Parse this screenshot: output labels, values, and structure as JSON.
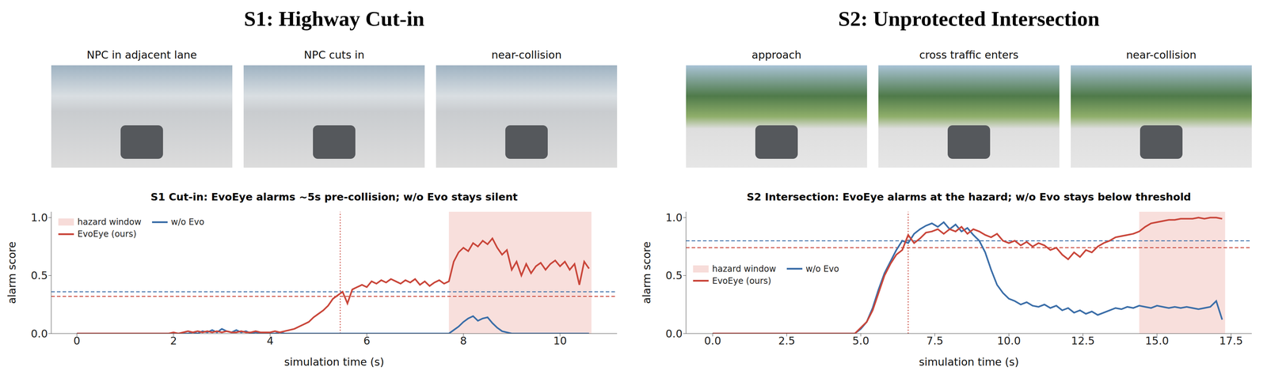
{
  "chart_data": [
    {
      "type": "line",
      "panel_title": "S1: Highway Cut-in",
      "frame_captions": [
        "NPC in adjacent lane",
        "NPC cuts in",
        "near-collision"
      ],
      "title": "S1 Cut-in: EvoEye alarms ~5s pre-collision; w/o Evo stays silent",
      "x_label": "simulation time (s)",
      "y_label": "alarm score",
      "x": [
        0,
        0.1,
        0.2,
        0.3,
        0.4,
        0.5,
        0.6,
        0.7,
        0.8,
        0.9,
        1,
        1.1,
        1.2,
        1.3,
        1.4,
        1.5,
        1.6,
        1.7,
        1.8,
        1.9,
        2,
        2.1,
        2.2,
        2.3,
        2.4,
        2.5,
        2.6,
        2.7,
        2.8,
        2.9,
        3,
        3.1,
        3.2,
        3.3,
        3.4,
        3.5,
        3.6,
        3.7,
        3.8,
        3.9,
        4,
        4.1,
        4.2,
        4.3,
        4.4,
        4.5,
        4.6,
        4.7,
        4.8,
        4.9,
        5,
        5.1,
        5.2,
        5.3,
        5.4,
        5.5,
        5.6,
        5.7,
        5.8,
        5.9,
        6,
        6.1,
        6.2,
        6.3,
        6.4,
        6.5,
        6.6,
        6.7,
        6.8,
        6.9,
        7,
        7.1,
        7.2,
        7.3,
        7.4,
        7.5,
        7.6,
        7.7,
        7.8,
        7.9,
        8,
        8.1,
        8.2,
        8.3,
        8.4,
        8.5,
        8.6,
        8.7,
        8.8,
        8.9,
        9,
        9.1,
        9.2,
        9.3,
        9.4,
        9.5,
        9.6,
        9.7,
        9.8,
        9.9,
        10,
        10.1,
        10.2,
        10.3,
        10.4,
        10.5,
        10.6
      ],
      "series": [
        {
          "name": "EvoEye (ours)",
          "color": "#c9463a",
          "threshold": 0.32,
          "values": [
            0,
            0,
            0,
            0,
            0,
            0,
            0,
            0,
            0,
            0,
            0,
            0,
            0,
            0,
            0,
            0,
            0,
            0,
            0,
            0,
            0.01,
            0,
            0.01,
            0.02,
            0.01,
            0.02,
            0.01,
            0.02,
            0.01,
            0.02,
            0.01,
            0.02,
            0.01,
            0.01,
            0.02,
            0.01,
            0.01,
            0.02,
            0.01,
            0.01,
            0.01,
            0.02,
            0.01,
            0.02,
            0.03,
            0.04,
            0.06,
            0.08,
            0.1,
            0.14,
            0.17,
            0.2,
            0.24,
            0.3,
            0.33,
            0.36,
            0.26,
            0.38,
            0.4,
            0.42,
            0.4,
            0.45,
            0.43,
            0.46,
            0.44,
            0.47,
            0.45,
            0.43,
            0.46,
            0.44,
            0.47,
            0.42,
            0.45,
            0.41,
            0.44,
            0.46,
            0.43,
            0.45,
            0.62,
            0.7,
            0.74,
            0.71,
            0.78,
            0.75,
            0.8,
            0.77,
            0.82,
            0.74,
            0.68,
            0.72,
            0.55,
            0.62,
            0.5,
            0.6,
            0.52,
            0.58,
            0.61,
            0.55,
            0.6,
            0.63,
            0.58,
            0.62,
            0.55,
            0.6,
            0.42,
            0.62,
            0.56
          ]
        },
        {
          "name": "w/o Evo",
          "color": "#3b6ea8",
          "threshold": 0.36,
          "values": [
            0,
            0,
            0,
            0,
            0,
            0,
            0,
            0,
            0,
            0,
            0,
            0,
            0,
            0,
            0,
            0,
            0,
            0,
            0,
            0,
            0,
            0,
            0,
            0,
            0.01,
            0,
            0.02,
            0.01,
            0.03,
            0.01,
            0.04,
            0.02,
            0.01,
            0.03,
            0.01,
            0.02,
            0,
            0.01,
            0,
            0,
            0,
            0,
            0.01,
            0,
            0,
            0,
            0,
            0,
            0,
            0,
            0,
            0,
            0,
            0,
            0,
            0,
            0,
            0,
            0,
            0,
            0,
            0,
            0,
            0,
            0,
            0,
            0,
            0,
            0,
            0,
            0,
            0,
            0,
            0,
            0,
            0,
            0,
            0,
            0.03,
            0.06,
            0.1,
            0.13,
            0.15,
            0.11,
            0.13,
            0.14,
            0.09,
            0.05,
            0.02,
            0.01,
            0,
            0,
            0,
            0,
            0,
            0,
            0,
            0,
            0,
            0,
            0,
            0,
            0,
            0,
            0,
            0,
            0
          ]
        }
      ],
      "hazard_window": {
        "label": "hazard window",
        "range": [
          7.7,
          10.65
        ],
        "color": "#f2c4bf"
      },
      "alarm_time": 5.45,
      "xlim": [
        -0.53,
        11.18
      ],
      "xticks": [
        0,
        2,
        4,
        6,
        8,
        10
      ],
      "ylim": [
        0,
        1.05
      ],
      "yticks": [
        {
          "value": 0,
          "label": "0.0"
        },
        {
          "value": 0.5,
          "label": "0.5"
        },
        {
          "value": 1,
          "label": "1.0"
        }
      ],
      "legend": "upper left",
      "grid": false
    },
    {
      "type": "line",
      "panel_title": "S2: Unprotected Intersection",
      "frame_captions": [
        "approach",
        "cross traffic enters",
        "near-collision"
      ],
      "title": "S2 Intersection: EvoEye alarms at the hazard; w/o Evo stays below threshold",
      "x_label": "simulation time (s)",
      "y_label": "alarm score",
      "x": [
        0,
        0.2,
        0.4,
        0.6,
        0.8,
        1,
        1.2,
        1.4,
        1.6,
        1.8,
        2,
        2.2,
        2.4,
        2.6,
        2.8,
        3,
        3.2,
        3.4,
        3.6,
        3.8,
        4,
        4.2,
        4.4,
        4.6,
        4.8,
        5,
        5.2,
        5.4,
        5.6,
        5.8,
        6,
        6.2,
        6.4,
        6.6,
        6.8,
        7,
        7.2,
        7.4,
        7.6,
        7.8,
        8,
        8.2,
        8.4,
        8.6,
        8.8,
        9,
        9.2,
        9.4,
        9.6,
        9.8,
        10,
        10.2,
        10.4,
        10.6,
        10.8,
        11,
        11.2,
        11.4,
        11.6,
        11.8,
        12,
        12.2,
        12.4,
        12.6,
        12.8,
        13,
        13.2,
        13.4,
        13.6,
        13.8,
        14,
        14.2,
        14.4,
        14.6,
        14.8,
        15,
        15.2,
        15.4,
        15.6,
        15.8,
        16,
        16.2,
        16.4,
        16.6,
        16.8,
        17,
        17.2
      ],
      "series": [
        {
          "name": "EvoEye (ours)",
          "color": "#c9463a",
          "threshold": 0.74,
          "values": [
            0,
            0,
            0,
            0,
            0,
            0,
            0,
            0,
            0,
            0,
            0,
            0,
            0,
            0,
            0,
            0,
            0,
            0,
            0,
            0,
            0,
            0,
            0,
            0,
            0,
            0.05,
            0.1,
            0.2,
            0.35,
            0.5,
            0.6,
            0.68,
            0.72,
            0.85,
            0.78,
            0.82,
            0.87,
            0.88,
            0.9,
            0.86,
            0.9,
            0.88,
            0.92,
            0.86,
            0.9,
            0.88,
            0.85,
            0.83,
            0.86,
            0.8,
            0.78,
            0.8,
            0.76,
            0.79,
            0.75,
            0.78,
            0.76,
            0.72,
            0.74,
            0.68,
            0.64,
            0.7,
            0.66,
            0.72,
            0.7,
            0.75,
            0.78,
            0.8,
            0.83,
            0.84,
            0.85,
            0.86,
            0.88,
            0.92,
            0.95,
            0.96,
            0.97,
            0.98,
            0.98,
            0.99,
            0.99,
            0.99,
            1,
            0.99,
            1,
            1,
            0.99
          ]
        },
        {
          "name": "w/o Evo",
          "color": "#3b6ea8",
          "threshold": 0.8,
          "values": [
            0,
            0,
            0,
            0,
            0,
            0,
            0,
            0,
            0,
            0,
            0,
            0,
            0,
            0,
            0,
            0,
            0,
            0,
            0,
            0,
            0,
            0,
            0,
            0,
            0,
            0.04,
            0.1,
            0.22,
            0.38,
            0.52,
            0.62,
            0.72,
            0.8,
            0.78,
            0.86,
            0.9,
            0.93,
            0.95,
            0.92,
            0.96,
            0.9,
            0.94,
            0.88,
            0.91,
            0.85,
            0.8,
            0.7,
            0.55,
            0.42,
            0.35,
            0.3,
            0.28,
            0.25,
            0.27,
            0.24,
            0.23,
            0.25,
            0.22,
            0.24,
            0.2,
            0.22,
            0.18,
            0.2,
            0.17,
            0.19,
            0.16,
            0.18,
            0.2,
            0.22,
            0.21,
            0.23,
            0.22,
            0.24,
            0.23,
            0.22,
            0.24,
            0.23,
            0.22,
            0.23,
            0.22,
            0.23,
            0.22,
            0.21,
            0.22,
            0.23,
            0.28,
            0.12
          ]
        }
      ],
      "hazard_window": {
        "label": "hazard window",
        "range": [
          14.4,
          17.3
        ],
        "color": "#f2c4bf"
      },
      "alarm_time": 6.6,
      "xlim": [
        -0.9,
        18.2
      ],
      "xticks": [
        {
          "value": 0,
          "label": "0.0"
        },
        2.5,
        {
          "value": 5,
          "label": "5.0"
        },
        7.5,
        {
          "value": 10,
          "label": "10.0"
        },
        12.5,
        {
          "value": 15,
          "label": "15.0"
        },
        17.5
      ],
      "ylim": [
        0,
        1.05
      ],
      "yticks": [
        {
          "value": 0,
          "label": "0.0"
        },
        {
          "value": 0.5,
          "label": "0.5"
        },
        {
          "value": 1,
          "label": "1.0"
        }
      ],
      "legend": "center left",
      "grid": false
    }
  ]
}
